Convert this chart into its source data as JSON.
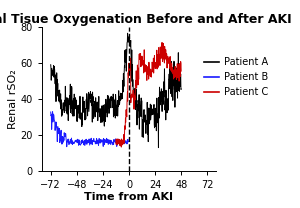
{
  "title": "Renal Tisue Oxygenation Before and After AKI",
  "xlabel": "Time from AKI",
  "ylabel": "Renal rSO₂",
  "xlim": [
    -80,
    80
  ],
  "ylim": [
    0,
    80
  ],
  "xticks": [
    -72,
    -48,
    -24,
    0,
    24,
    48,
    72
  ],
  "yticks": [
    0,
    20,
    40,
    60,
    80
  ],
  "dashed_x": 0,
  "patient_a_color": "#000000",
  "patient_b_color": "#1a1aff",
  "patient_c_color": "#cc0000",
  "legend_labels": [
    "Patient A",
    "Patient B",
    "Patient C"
  ],
  "legend_colors": [
    "#000000",
    "#1a1aff",
    "#cc0000"
  ],
  "background_color": "#ffffff",
  "title_fontsize": 9,
  "axis_label_fontsize": 8,
  "tick_fontsize": 7,
  "legend_fontsize": 7
}
